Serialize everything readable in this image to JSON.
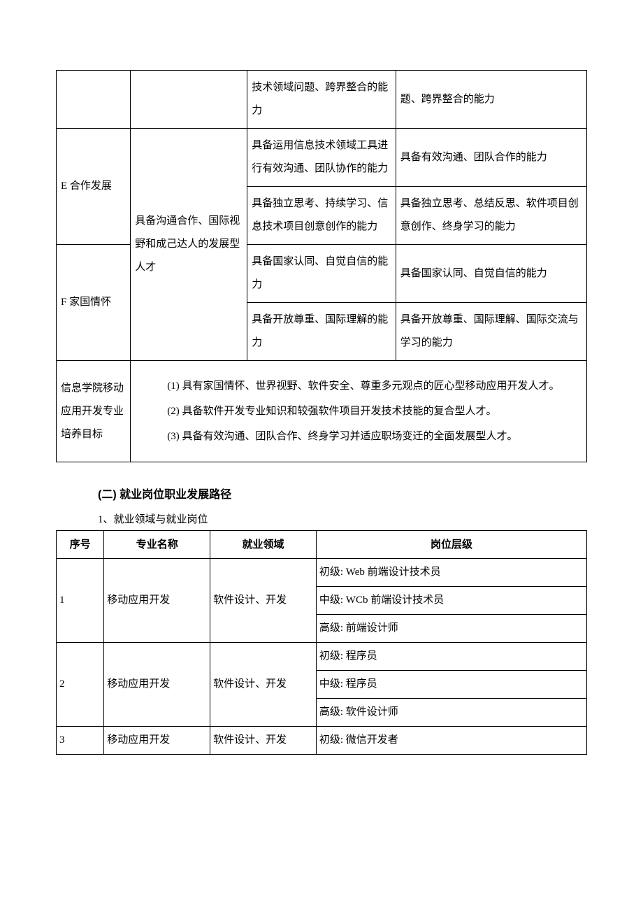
{
  "table1": {
    "row0": {
      "c3": "技术领域问题、跨界整合的能力",
      "c4": "题、跨界整合的能力"
    },
    "rowE": {
      "label": "E 合作发展",
      "c3a": "具备运用信息技术领域工具进行有效沟通、团队协作的能力",
      "c4a": "具备有效沟通、团队合作的能力",
      "c3b": "具备独立思考、持续学习、信息技术项目创意创作的能力",
      "c4b": "具备独立思考、总结反思、软件项目创意创作、终身学习的能力"
    },
    "shared_mid": "具备沟通合作、国际视野和成己达人的发展型人才",
    "rowF": {
      "label": "F 家国情怀",
      "c3a": "具备国家认同、自觉自信的能力",
      "c4a": "具备国家认同、自觉自信的能力",
      "c3b": "具备开放尊重、国际理解的能力",
      "c4b": "具备开放尊重、国际理解、国际交流与学习的能力"
    },
    "goalRow": {
      "label": "信息学院移动应用开发专业培养目标",
      "p1": "(1) 具有家国情怀、世界视野、软件安全、尊重多元观点的匠心型移动应用开发人才。",
      "p2": "(2) 具备软件开发专业知识和较强软件项目开发技术技能的复合型人才。",
      "p3": "(3) 具备有效沟通、团队合作、终身学习并适应职场变迁的全面发展型人才。"
    }
  },
  "section2": {
    "heading": "(二) 就业岗位职业发展路径",
    "subheading": "1、就业领域与就业岗位"
  },
  "table2": {
    "headers": {
      "c1": "序号",
      "c2": "专业名称",
      "c3": "就业领域",
      "c4": "岗位层级"
    },
    "r1": {
      "seq": "1",
      "major": "移动应用开发",
      "field": "软件设计、开发",
      "l1": "初级: Web 前端设计技术员",
      "l2": "中级: WCb 前端设计技术员",
      "l3": "高级: 前端设计师"
    },
    "r2": {
      "seq": "2",
      "major": "移动应用开发",
      "field": "软件设计、开发",
      "l1": "初级: 程序员",
      "l2": "中级: 程序员",
      "l3": "高级: 软件设计师"
    },
    "r3": {
      "seq": "3",
      "major": "移动应用开发",
      "field": "软件设计、开发",
      "l1": "初级: 微信开发者"
    }
  }
}
